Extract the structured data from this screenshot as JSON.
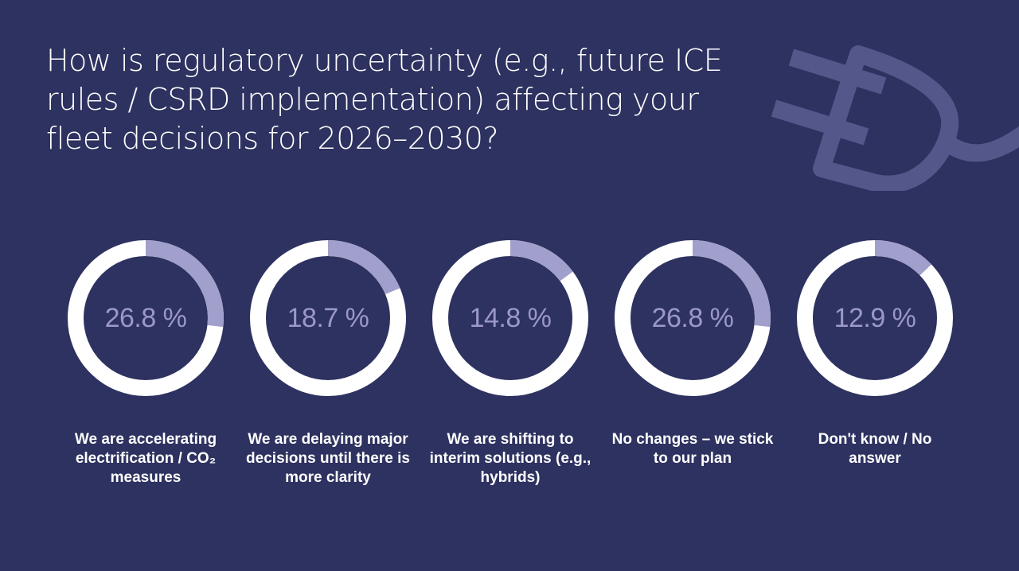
{
  "title": "How is regulatory uncertainty (e.g., future ICE rules / CSRD implementation) affecting your fleet decisions for 2026–2030?",
  "colors": {
    "background": "#2e3260",
    "ring_remainder": "#ffffff",
    "ring_value": "#a19fcb",
    "percent_text": "#9b98c8",
    "plug_icon": "#54578a"
  },
  "decor_icon": "plug-icon",
  "chart_data": {
    "type": "donut",
    "title": "How is regulatory uncertainty (e.g., future ICE rules / CSRD implementation) affecting your fleet decisions for 2026–2030?",
    "unit": "%",
    "categories": [
      "We are accelerating electrification / CO₂ measures",
      "We are delaying major decisions until there is more clarity",
      "We are shifting to interim solutions (e.g., hybrids)",
      "No changes – we stick to our plan",
      "Don't know / No answer"
    ],
    "values": [
      26.8,
      18.7,
      14.8,
      26.8,
      12.9
    ],
    "value_labels": [
      "26.8 %",
      "18.7 %",
      "14.8 %",
      "26.8 %",
      "12.9 %"
    ]
  }
}
